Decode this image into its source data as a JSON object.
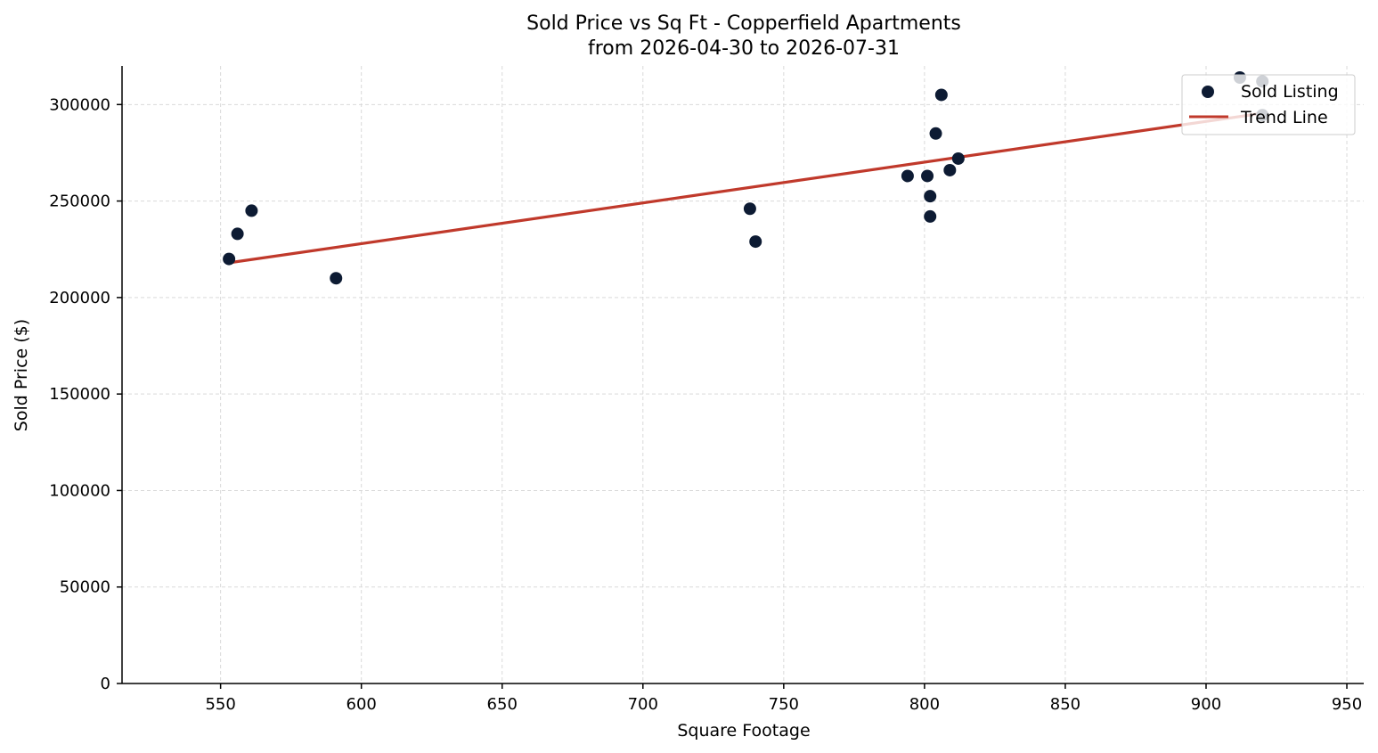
{
  "chart_data": {
    "type": "scatter",
    "title_line1": "Sold Price vs Sq Ft - Copperfield Apartments",
    "title_line2": "from 2026-04-30 to 2026-07-31",
    "xlabel": "Square Footage",
    "ylabel": "Sold Price ($)",
    "xlim": [
      515,
      956
    ],
    "ylim": [
      0,
      320000
    ],
    "xticks": [
      550,
      600,
      650,
      700,
      750,
      800,
      850,
      900,
      950
    ],
    "yticks": [
      0,
      50000,
      100000,
      150000,
      200000,
      250000,
      300000
    ],
    "grid": true,
    "legend_position": "top-right",
    "series": [
      {
        "name": "Sold Listing",
        "kind": "scatter",
        "color": "#0d1b33",
        "points": [
          {
            "x": 553,
            "y": 220000
          },
          {
            "x": 556,
            "y": 233000
          },
          {
            "x": 561,
            "y": 245000
          },
          {
            "x": 591,
            "y": 210000
          },
          {
            "x": 738,
            "y": 246000
          },
          {
            "x": 740,
            "y": 229000
          },
          {
            "x": 794,
            "y": 263000
          },
          {
            "x": 801,
            "y": 263000
          },
          {
            "x": 802,
            "y": 252500
          },
          {
            "x": 802,
            "y": 242000
          },
          {
            "x": 804,
            "y": 285000
          },
          {
            "x": 806,
            "y": 305000
          },
          {
            "x": 809,
            "y": 266000
          },
          {
            "x": 812,
            "y": 272000
          },
          {
            "x": 912,
            "y": 314000
          },
          {
            "x": 920,
            "y": 312000
          },
          {
            "x": 920,
            "y": 294500
          }
        ]
      },
      {
        "name": "Trend Line",
        "kind": "line",
        "color": "#c0392b",
        "points": [
          {
            "x": 553,
            "y": 218000
          },
          {
            "x": 920,
            "y": 295500
          }
        ]
      }
    ]
  }
}
